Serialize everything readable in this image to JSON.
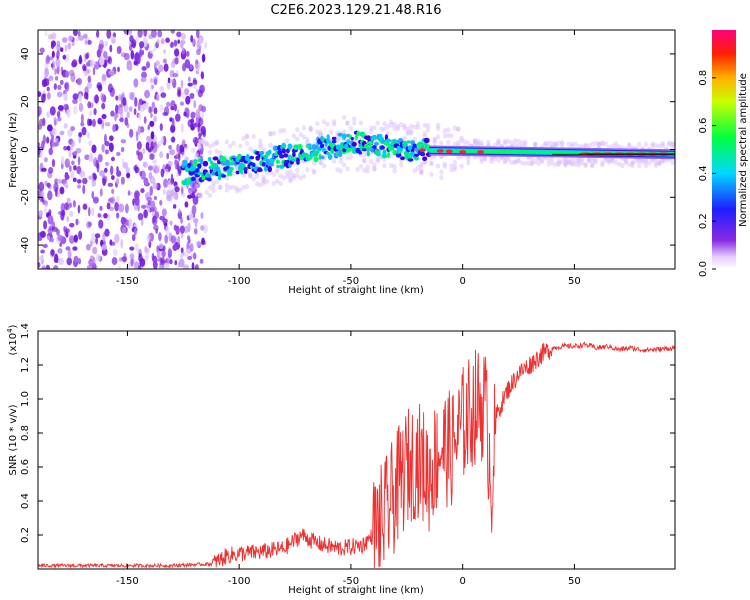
{
  "title": "C2E6.2023.129.21.48.R16",
  "chart_data": [
    {
      "type": "heatmap",
      "title": "",
      "xlabel": "Height of straight line (km)",
      "ylabel": "Frequency (Hz)",
      "xlim": [
        -190,
        95
      ],
      "ylim": [
        -50,
        50
      ],
      "x_ticks": [
        -150,
        -100,
        -50,
        0,
        50
      ],
      "y_ticks": [
        -40,
        -20,
        0,
        20,
        40
      ],
      "colorbar": {
        "label": "Normalized spectral amplitude",
        "range": [
          0.0,
          1.0
        ],
        "ticks": [
          0.0,
          0.2,
          0.4,
          0.6,
          0.8
        ],
        "colormap": "rainbow"
      },
      "features": {
        "noise_region_x": [
          -190,
          -115
        ],
        "signal_track": [
          {
            "x": -125,
            "y": -10
          },
          {
            "x": -100,
            "y": -6
          },
          {
            "x": -75,
            "y": -2
          },
          {
            "x": -50,
            "y": 3
          },
          {
            "x": -25,
            "y": 0
          },
          {
            "x": 0,
            "y": -1
          },
          {
            "x": 25,
            "y": -1
          },
          {
            "x": 50,
            "y": -2
          },
          {
            "x": 95,
            "y": -2
          }
        ]
      }
    },
    {
      "type": "line",
      "title": "",
      "xlabel": "Height of straight line (km)",
      "ylabel": "SNR (10 * v/v)",
      "y_scale_label": "(x10",
      "y_scale_exponent": "4",
      "y_scale_suffix": ")",
      "xlim": [
        -190,
        95
      ],
      "ylim": [
        0,
        1.4
      ],
      "x_ticks": [
        -150,
        -100,
        -50,
        0,
        50
      ],
      "y_ticks": [
        0.2,
        0.4,
        0.6,
        0.8,
        1.0,
        1.2,
        1.4
      ],
      "series": [
        {
          "color": "#ee3030",
          "x": [
            -190,
            -160,
            -130,
            -112,
            -105,
            -100,
            -90,
            -80,
            -72,
            -65,
            -55,
            -45,
            -40,
            -35,
            -30,
            -25,
            -20,
            -15,
            -10,
            -5,
            0,
            5,
            10,
            13,
            15,
            20,
            25,
            30,
            35,
            40,
            45,
            50,
            55,
            60,
            65,
            70,
            75,
            80,
            85,
            95
          ],
          "y": [
            0.02,
            0.02,
            0.02,
            0.03,
            0.08,
            0.09,
            0.1,
            0.12,
            0.2,
            0.15,
            0.12,
            0.14,
            0.2,
            0.3,
            0.45,
            0.6,
            0.65,
            0.55,
            0.72,
            0.7,
            0.85,
            0.95,
            0.98,
            0.5,
            0.9,
            1.05,
            1.15,
            1.2,
            1.26,
            1.3,
            1.31,
            1.31,
            1.32,
            1.3,
            1.31,
            1.29,
            1.3,
            1.29,
            1.29,
            1.3
          ]
        }
      ]
    }
  ]
}
